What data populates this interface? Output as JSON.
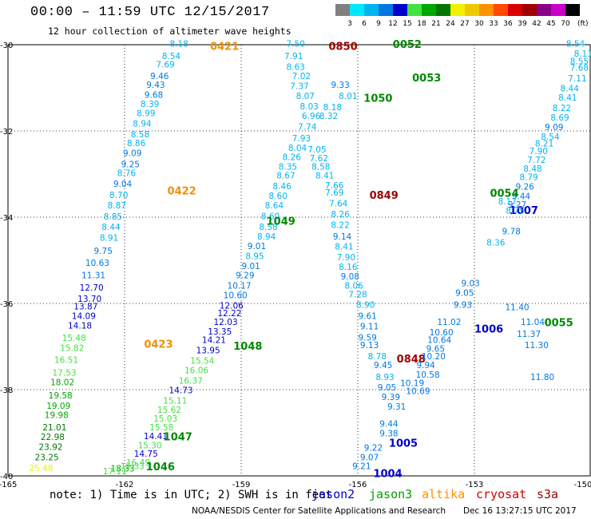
{
  "header": {
    "title": "00:00 – 11:59 UTC 12/15/2017",
    "subtitle": "12 hour collection of altimeter wave heights"
  },
  "scale": {
    "unit": "(ft)",
    "labels": [
      "3",
      "6",
      "9",
      "12",
      "15",
      "18",
      "21",
      "24",
      "27",
      "30",
      "33",
      "36",
      "39",
      "42",
      "45",
      "70"
    ],
    "colors": [
      "#808080",
      "#00e8ff",
      "#00b4f0",
      "#0078e0",
      "#0000cc",
      "#44e044",
      "#00a800",
      "#007800",
      "#f0f000",
      "#f0c800",
      "#ff9000",
      "#ff4800",
      "#d80000",
      "#a00000",
      "#880088",
      "#c800c8",
      "#000000"
    ]
  },
  "map": {
    "lon_ticks": [
      "-165",
      "-162",
      "-159",
      "-156",
      "-153",
      "-150"
    ],
    "lat_ticks": [
      "-30",
      "-32",
      "-34",
      "-36",
      "-38",
      "-40"
    ],
    "lon_range": [
      -165,
      -150
    ],
    "lat_range": [
      -40,
      -30
    ],
    "tracks": [
      {
        "id": "track-altika-0421-0423",
        "satellite": "altika",
        "labels": [
          {
            "text": "0421",
            "lon": -159.8,
            "lat": -30.05
          },
          {
            "text": "0422",
            "lon": -160.9,
            "lat": -33.4
          },
          {
            "text": "0423",
            "lon": -161.5,
            "lat": -36.95
          }
        ],
        "values": [
          "8.18",
          "8.54",
          "7.69",
          "9.46",
          "9.43",
          "9.68",
          "8.39",
          "8.99",
          "8.94",
          "8.58",
          "8.86",
          "9.09",
          "9.25",
          "8.76",
          "9.04",
          "8.70",
          "8.87",
          "8.85",
          "8.44",
          "8.91",
          "9.75",
          "10.63",
          "11.31",
          "12.70",
          "13.70",
          "13.87",
          "14.09",
          "14.18",
          "15.48",
          "15.82",
          "16.51",
          "17.53",
          "18.02",
          "19.58",
          "19.09",
          "19.98",
          "21.01",
          "22.98",
          "23.92",
          "23.25",
          "25.48"
        ],
        "points": [
          [
            -160.6,
            -30.05
          ],
          [
            -160.8,
            -30.33
          ],
          [
            -160.95,
            -30.53
          ],
          [
            -161.1,
            -30.8
          ],
          [
            -161.2,
            -31.0
          ],
          [
            -161.25,
            -31.23
          ],
          [
            -161.35,
            -31.44
          ],
          [
            -161.45,
            -31.66
          ],
          [
            -161.55,
            -31.9
          ],
          [
            -161.6,
            -32.15
          ],
          [
            -161.7,
            -32.35
          ],
          [
            -161.8,
            -32.58
          ],
          [
            -161.85,
            -32.84
          ],
          [
            -161.95,
            -33.05
          ],
          [
            -162.05,
            -33.3
          ],
          [
            -162.15,
            -33.56
          ],
          [
            -162.2,
            -33.8
          ],
          [
            -162.3,
            -34.06
          ],
          [
            -162.35,
            -34.3
          ],
          [
            -162.4,
            -34.55
          ],
          [
            -162.55,
            -34.85
          ],
          [
            -162.7,
            -35.13
          ],
          [
            -162.8,
            -35.42
          ],
          [
            -162.85,
            -35.7
          ],
          [
            -162.9,
            -35.96
          ],
          [
            -163.0,
            -36.14
          ],
          [
            -163.05,
            -36.36
          ],
          [
            -163.15,
            -36.58
          ],
          [
            -163.3,
            -36.87
          ],
          [
            -163.35,
            -37.1
          ],
          [
            -163.5,
            -37.38
          ],
          [
            -163.55,
            -37.68
          ],
          [
            -163.6,
            -37.9
          ],
          [
            -163.65,
            -38.2
          ],
          [
            -163.7,
            -38.44
          ],
          [
            -163.75,
            -38.66
          ],
          [
            -163.8,
            -38.94
          ],
          [
            -163.85,
            -39.17
          ],
          [
            -163.9,
            -39.4
          ],
          [
            -164.0,
            -39.64
          ],
          [
            -164.15,
            -39.89
          ]
        ]
      },
      {
        "id": "track-cryosat-0849-0850",
        "satellite": "cryosat",
        "labels": [
          {
            "text": "0850",
            "lon": -156.75,
            "lat": -30.05
          },
          {
            "text": "0849",
            "lon": -155.7,
            "lat": -33.5
          },
          {
            "text": "0848",
            "lon": -155.0,
            "lat": -37.3
          }
        ],
        "values": [],
        "points": []
      },
      {
        "id": "track-jason3-1046-1050",
        "satellite": "jason3",
        "labels": [
          {
            "text": "1050",
            "lon": -155.85,
            "lat": -31.25
          },
          {
            "text": "1049",
            "lon": -158.35,
            "lat": -34.1
          },
          {
            "text": "1048",
            "lon": -159.2,
            "lat": -37.0
          },
          {
            "text": "1047",
            "lon": -161.0,
            "lat": -39.1
          },
          {
            "text": "1046",
            "lon": -161.45,
            "lat": -39.8
          }
        ],
        "values": [
          "7.50",
          "7.91",
          "8.63",
          "7.02",
          "7.37",
          "8.07",
          "8.03",
          "6.96",
          "7.74",
          "7.93",
          "8.04",
          "8.26",
          "8.35",
          "8.67",
          "8.46",
          "8.60",
          "8.64",
          "8.60",
          "8.58",
          "8.94",
          "9.01",
          "8.95",
          "9.01",
          "9.29",
          "10.17",
          "10.60",
          "12.06",
          "12.22",
          "12.03",
          "13.35",
          "14.21",
          "13.95",
          "15.54",
          "16.06",
          "16.37",
          "14.73",
          "15.11",
          "15.62",
          "15.03",
          "15.58",
          "14.41",
          "15.30",
          "14.75",
          "16.49",
          "15.33",
          "18.33",
          "17.11"
        ],
        "points": [
          [
            -157.6,
            -30.05
          ],
          [
            -157.65,
            -30.33
          ],
          [
            -157.6,
            -30.58
          ],
          [
            -157.45,
            -30.8
          ],
          [
            -157.5,
            -31.03
          ],
          [
            -157.35,
            -31.26
          ],
          [
            -157.25,
            -31.5
          ],
          [
            -157.2,
            -31.72
          ],
          [
            -157.3,
            -31.97
          ],
          [
            -157.45,
            -32.24
          ],
          [
            -157.55,
            -32.46
          ],
          [
            -157.7,
            -32.68
          ],
          [
            -157.8,
            -32.9
          ],
          [
            -157.85,
            -33.1
          ],
          [
            -157.95,
            -33.35
          ],
          [
            -158.05,
            -33.57
          ],
          [
            -158.15,
            -33.8
          ],
          [
            -158.25,
            -34.05
          ],
          [
            -158.3,
            -34.3
          ],
          [
            -158.35,
            -34.52
          ],
          [
            -158.6,
            -34.74
          ],
          [
            -158.65,
            -34.97
          ],
          [
            -158.75,
            -35.2
          ],
          [
            -158.9,
            -35.42
          ],
          [
            -159.05,
            -35.66
          ],
          [
            -159.15,
            -35.88
          ],
          [
            -159.25,
            -36.12
          ],
          [
            -159.3,
            -36.3
          ],
          [
            -159.4,
            -36.5
          ],
          [
            -159.55,
            -36.72
          ],
          [
            -159.7,
            -36.92
          ],
          [
            -159.85,
            -37.16
          ],
          [
            -160.0,
            -37.4
          ],
          [
            -160.15,
            -37.62
          ],
          [
            -160.3,
            -37.86
          ],
          [
            -160.55,
            -38.08
          ],
          [
            -160.7,
            -38.32
          ],
          [
            -160.85,
            -38.54
          ],
          [
            -160.95,
            -38.74
          ],
          [
            -161.05,
            -38.94
          ],
          [
            -161.2,
            -39.15
          ],
          [
            -161.35,
            -39.36
          ],
          [
            -161.45,
            -39.56
          ],
          [
            -161.65,
            -39.76
          ],
          [
            -161.8,
            -39.84
          ],
          [
            -162.05,
            -39.9
          ],
          [
            -162.25,
            -39.96
          ]
        ]
      },
      {
        "id": "track-jason2-1004-1007",
        "satellite": "jason2",
        "labels": [
          {
            "text": "1007",
            "lon": -152.1,
            "lat": -33.85
          },
          {
            "text": "1006",
            "lon": -153.0,
            "lat": -36.6
          },
          {
            "text": "1005",
            "lon": -155.2,
            "lat": -39.25
          },
          {
            "text": "1004",
            "lon": -155.6,
            "lat": -39.95
          }
        ],
        "values": [
          "9.33",
          "8.01",
          "8.18",
          "8.32",
          "7.05",
          "7.62",
          "8.58",
          "8.41",
          "7.66",
          "7.69",
          "7.64",
          "8.26",
          "8.22",
          "9.14",
          "8.41",
          "7.90",
          "8.16",
          "9.08",
          "8.06",
          "7.28",
          "8.90",
          "9.61",
          "9.11",
          "9.59",
          "9.13",
          "8.78",
          "9.45",
          "8.93",
          "9.05",
          "9.39",
          "9.31",
          "9.44",
          "9.38",
          "9.22",
          "9.07",
          "9.21",
          "10.19",
          "10.69",
          "10.58",
          "9.94",
          "10.20",
          "9.65",
          "10.64",
          "10.60",
          "11.02",
          "9.93",
          "9.05",
          "9.03"
        ],
        "points": [
          [
            -156.45,
            -31.0
          ],
          [
            -156.25,
            -31.26
          ],
          [
            -156.65,
            -31.52
          ],
          [
            -156.75,
            -31.72
          ],
          [
            -157.05,
            -32.5
          ],
          [
            -157.0,
            -32.7
          ],
          [
            -156.95,
            -32.9
          ],
          [
            -156.85,
            -33.1
          ],
          [
            -156.6,
            -33.33
          ],
          [
            -156.6,
            -33.5
          ],
          [
            -156.5,
            -33.75
          ],
          [
            -156.45,
            -34.0
          ],
          [
            -156.45,
            -34.25
          ],
          [
            -156.4,
            -34.52
          ],
          [
            -156.35,
            -34.75
          ],
          [
            -156.3,
            -35.0
          ],
          [
            -156.25,
            -35.22
          ],
          [
            -156.2,
            -35.44
          ],
          [
            -156.1,
            -35.66
          ],
          [
            -156.0,
            -35.86
          ],
          [
            -155.8,
            -36.1
          ],
          [
            -155.75,
            -36.36
          ],
          [
            -155.7,
            -36.6
          ],
          [
            -155.75,
            -36.86
          ],
          [
            -155.7,
            -37.04
          ],
          [
            -155.5,
            -37.3
          ],
          [
            -155.35,
            -37.5
          ],
          [
            -155.3,
            -37.78
          ],
          [
            -155.25,
            -38.02
          ],
          [
            -155.15,
            -38.24
          ],
          [
            -155.0,
            -38.46
          ],
          [
            -155.2,
            -38.86
          ],
          [
            -155.2,
            -39.08
          ],
          [
            -155.6,
            -39.42
          ],
          [
            -155.7,
            -39.64
          ],
          [
            -155.9,
            -39.84
          ],
          [
            -154.6,
            -37.92
          ],
          [
            -154.45,
            -38.1
          ],
          [
            -154.2,
            -37.72
          ],
          [
            -154.25,
            -37.5
          ],
          [
            -154.05,
            -37.3
          ],
          [
            -154.0,
            -37.12
          ],
          [
            -153.9,
            -36.92
          ],
          [
            -153.85,
            -36.74
          ],
          [
            -153.65,
            -36.5
          ],
          [
            -153.3,
            -36.1
          ],
          [
            -153.25,
            -35.82
          ],
          [
            -153.1,
            -35.6
          ]
        ]
      },
      {
        "id": "track-s3a-0052-0055",
        "satellite": "s3a",
        "labels": [
          {
            "text": "0052",
            "lon": -155.1,
            "lat": -30.0
          },
          {
            "text": "0053",
            "lon": -154.6,
            "lat": -30.78
          },
          {
            "text": "0054",
            "lon": -152.6,
            "lat": -33.45
          },
          {
            "text": "0055",
            "lon": -151.2,
            "lat": -36.45
          }
        ],
        "values": [
          "8.54",
          "8.11",
          "7.68",
          "7.11",
          "8.44",
          "8.41",
          "8.22",
          "8.69",
          "9.09",
          "8.54",
          "8.21",
          "7.90",
          "7.72",
          "8.48",
          "8.79",
          "9.26",
          "9.44",
          "9.27",
          "8.75",
          "8.17",
          "9.78",
          "8.36",
          "11.40",
          "11.37",
          "11.30",
          "11.04",
          "11.80",
          "8.55"
        ],
        "points": [
          [
            -150.4,
            -30.05
          ],
          [
            -150.2,
            -30.28
          ],
          [
            -150.3,
            -30.6
          ],
          [
            -150.35,
            -30.85
          ],
          [
            -150.55,
            -31.08
          ],
          [
            -150.6,
            -31.3
          ],
          [
            -150.75,
            -31.54
          ],
          [
            -150.8,
            -31.76
          ],
          [
            -150.95,
            -31.98
          ],
          [
            -151.05,
            -32.2
          ],
          [
            -151.2,
            -32.36
          ],
          [
            -151.35,
            -32.54
          ],
          [
            -151.4,
            -32.74
          ],
          [
            -151.5,
            -32.94
          ],
          [
            -151.6,
            -33.14
          ],
          [
            -151.7,
            -33.36
          ],
          [
            -151.8,
            -33.58
          ],
          [
            -151.9,
            -33.78
          ],
          [
            -151.95,
            -33.92
          ],
          [
            -152.15,
            -33.7
          ],
          [
            -152.05,
            -34.4
          ],
          [
            -152.45,
            -34.66
          ],
          [
            -151.9,
            -36.16
          ],
          [
            -151.6,
            -36.78
          ],
          [
            -151.4,
            -37.04
          ],
          [
            -151.5,
            -36.5
          ],
          [
            -151.25,
            -37.78
          ],
          [
            -150.3,
            -30.45
          ]
        ]
      }
    ]
  },
  "legend": {
    "note": "note: 1) Time is in UTC; 2) SWH is in feet",
    "satellites": [
      {
        "name": "jason2",
        "color": "#0000c8"
      },
      {
        "name": "jason3",
        "color": "#00a000"
      },
      {
        "name": "altika",
        "color": "#ff9000"
      },
      {
        "name": "cryosat",
        "color": "#d00000"
      },
      {
        "name": "s3a",
        "color": "#a00000"
      }
    ]
  },
  "footer": {
    "credit": "NOAA/NESDIS Center for Satellite Applications and Research",
    "timestamp": "Dec 16 13:27:15 UTC 2017"
  }
}
